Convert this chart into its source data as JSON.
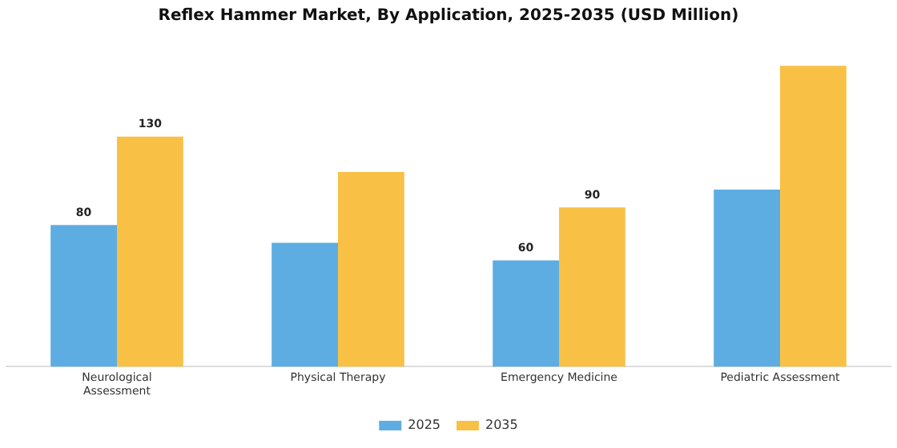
{
  "chart_data": {
    "type": "bar",
    "title": "Reflex Hammer Market, By Application, 2025-2035 (USD Million)",
    "categories": [
      "Neurological Assessment",
      "Physical Therapy",
      "Emergency Medicine",
      "Pediatric Assessment"
    ],
    "series": [
      {
        "name": "2025",
        "color": "#5dade2",
        "values": [
          80,
          70,
          60,
          100
        ],
        "value_labels": [
          "80",
          null,
          "60",
          null
        ]
      },
      {
        "name": "2035",
        "color": "#f8c146",
        "values": [
          130,
          110,
          90,
          170
        ],
        "value_labels": [
          "130",
          null,
          "90",
          null
        ]
      }
    ],
    "legend": "bottom",
    "grid": false,
    "tick_labels": "x"
  }
}
